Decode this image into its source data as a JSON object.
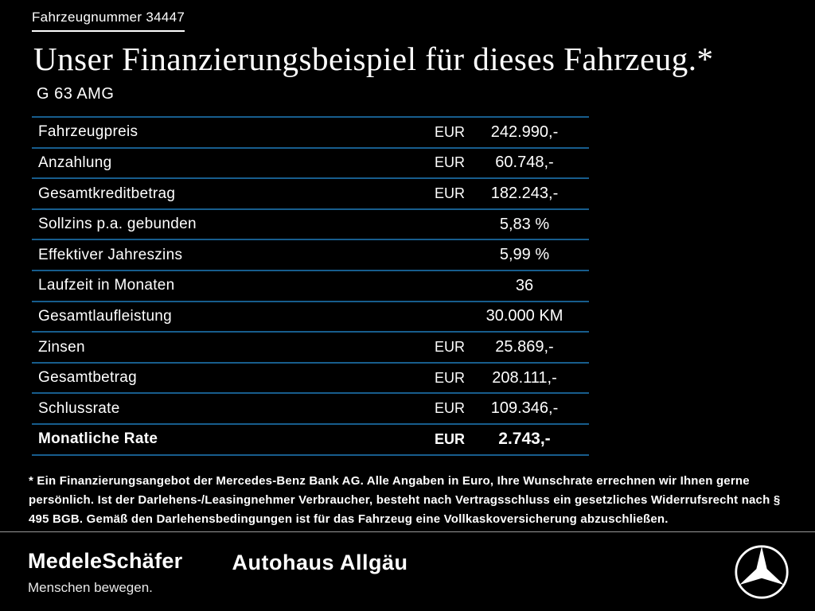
{
  "header": {
    "vehicle_number": "Fahrzeugnummer 34447",
    "title": "Unser Finanzierungsbeispiel für dieses Fahrzeug.*",
    "model": "G 63 AMG"
  },
  "table": {
    "rows": [
      {
        "label": "Fahrzeugpreis",
        "currency": "EUR",
        "value": "242.990,-",
        "bold": false
      },
      {
        "label": "Anzahlung",
        "currency": "EUR",
        "value": "60.748,-",
        "bold": false
      },
      {
        "label": "Gesamtkreditbetrag",
        "currency": "EUR",
        "value": "182.243,-",
        "bold": false
      },
      {
        "label": "Sollzins p.a. gebunden",
        "currency": "",
        "value": "5,83 %",
        "bold": false
      },
      {
        "label": "Effektiver Jahreszins",
        "currency": "",
        "value": "5,99 %",
        "bold": false
      },
      {
        "label": "Laufzeit in Monaten",
        "currency": "",
        "value": "36",
        "bold": false
      },
      {
        "label": "Gesamtlaufleistung",
        "currency": "",
        "value": "30.000 KM",
        "bold": false
      },
      {
        "label": "Zinsen",
        "currency": "EUR",
        "value": "25.869,-",
        "bold": false
      },
      {
        "label": "Gesamtbetrag",
        "currency": "EUR",
        "value": "208.111,-",
        "bold": false
      },
      {
        "label": "Schlussrate",
        "currency": "EUR",
        "value": "109.346,-",
        "bold": false
      },
      {
        "label": "Monatliche Rate",
        "currency": "EUR",
        "value": "2.743,-",
        "bold": true
      }
    ]
  },
  "footnote": "* Ein Finanzierungsangebot der Mercedes-Benz Bank AG. Alle Angaben in Euro, Ihre Wunschrate errechnen wir Ihnen gerne persönlich. Ist der Darlehens-/Leasingnehmer Verbraucher, besteht nach Vertragsschluss ein gesetzliches Widerrufsrecht nach § 495 BGB. Gemäß den Darlehensbedingungen ist für das Fahrzeug eine Vollkaskoversicherung abzuschließen.",
  "footer": {
    "dealer1": "MedeleSchäfer",
    "tagline": "Menschen bewegen.",
    "dealer2": "Autohaus Allgäu",
    "brand_logo": "mercedes-star"
  },
  "colors": {
    "background": "#000000",
    "table_line": "#175d8d",
    "text": "#ffffff",
    "divider": "#9a9a9a"
  }
}
